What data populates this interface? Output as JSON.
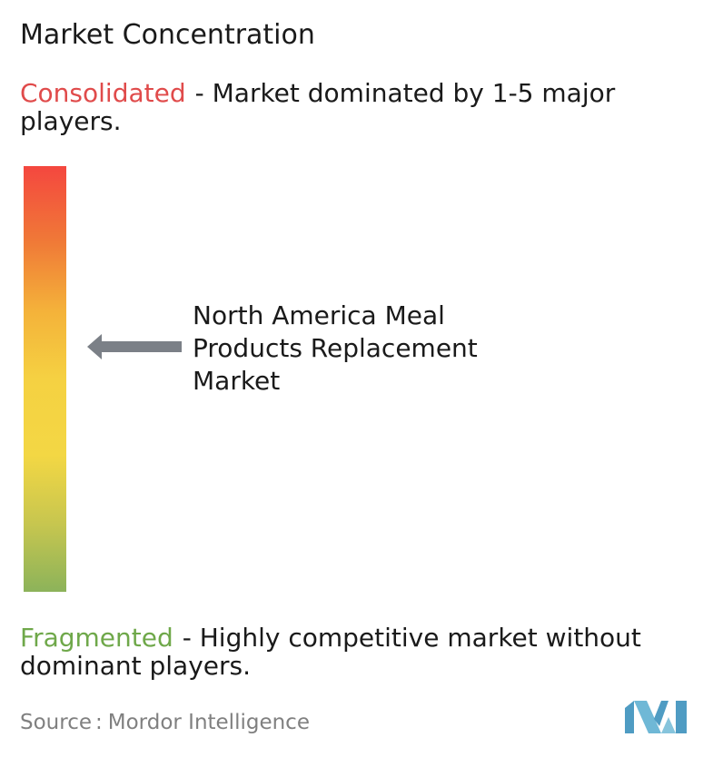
{
  "title": "Market Concentration",
  "consolidated": {
    "term": "Consolidated",
    "description": "- Market dominated by 1-5 major players.",
    "color": "#e04b4b"
  },
  "fragmented": {
    "term": "Fragmented",
    "description": "- Highly competitive market without dominant players.",
    "color": "#6fa84a"
  },
  "gradient_colors": [
    "#f4473f",
    "#f07a37",
    "#f4b23a",
    "#f5d142",
    "#f3d744",
    "#c7c64f",
    "#8cb35a"
  ],
  "market": {
    "lines": [
      "North America Meal",
      "Products Replacement",
      "Market"
    ],
    "arrow_icon": "left-arrow-icon",
    "arrow_color": "#7b8087"
  },
  "source": {
    "label": "Source",
    "separator": ":",
    "name": "Mordor Intelligence"
  },
  "logo": {
    "icon": "mordor-intelligence-logo",
    "color": "#5aa6c8"
  }
}
